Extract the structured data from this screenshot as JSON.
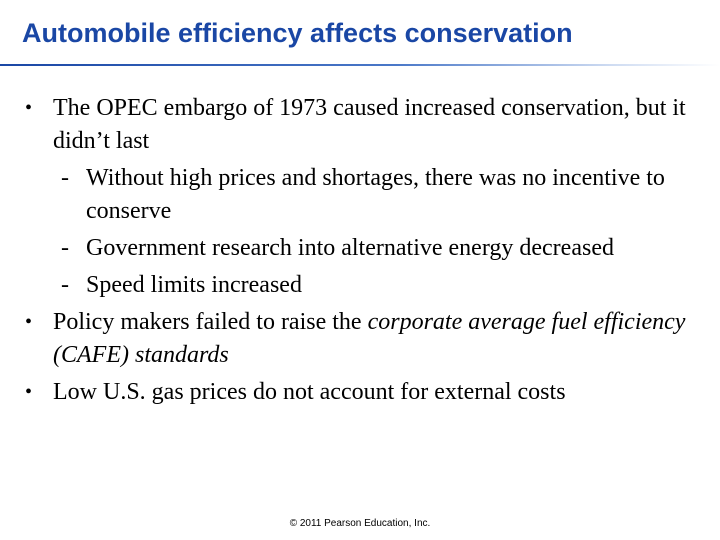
{
  "title": "Automobile efficiency affects conservation",
  "bullets": [
    {
      "text": "The OPEC embargo of 1973 caused increased conservation, but it didn’t last"
    },
    {
      "text": "Without high prices and shortages, there was no incentive to conserve"
    },
    {
      "text": "Government research into alternative energy decreased"
    },
    {
      "text": "Speed limits increased"
    },
    {
      "text_before": "Policy makers failed to raise the ",
      "text_italic": "corporate average fuel efficiency (CAFE) standards"
    },
    {
      "text": "Low U.S. gas prices do not account for external costs"
    }
  ],
  "markers": {
    "level1": "•",
    "level2": "-"
  },
  "footer": "© 2011 Pearson Education, Inc.",
  "colors": {
    "title": "#1a47a5",
    "text": "#000000"
  }
}
